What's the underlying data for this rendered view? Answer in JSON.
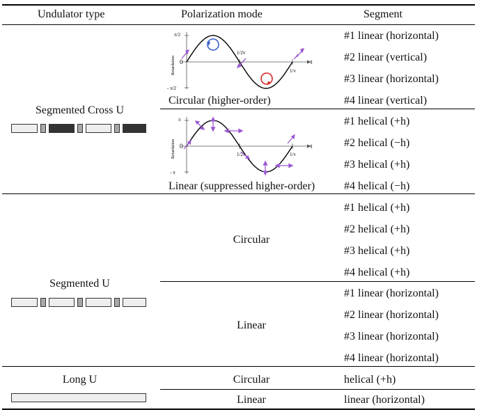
{
  "headers": {
    "undulator_type": "Undulator type",
    "polarization_mode": "Polarization mode",
    "segment": "Segment"
  },
  "rows": [
    {
      "undulator": "Segmented Cross U",
      "modes": [
        {
          "label": "Circular (higher-order)",
          "figure": {
            "y_axis_label": "Retardation",
            "y_top": "π/2",
            "y_bottom": "- π/2",
            "y_zero": "0",
            "x_half": "1/2v",
            "x_full": "1/v",
            "x_axis": "t",
            "icons": [
              "circle-left-handed-icon",
              "circle-right-handed-icon",
              "arrow-diagonal-icon"
            ]
          },
          "segments": [
            "#1 linear (horizontal)",
            "#2 linear (vertical)",
            "#3 linear (horizontal)",
            "#4 linear (vertical)"
          ]
        },
        {
          "label": "Linear (suppressed higher-order)",
          "figure": {
            "y_axis_label": "Retardation",
            "y_top": "π",
            "y_bottom": "- π",
            "y_zero": "0",
            "x_half": "1/2v",
            "x_full": "1/v",
            "x_axis": "t",
            "icons": [
              "arrow-diagonal-icon",
              "arrow-vertical-icon",
              "arrow-horizontal-icon"
            ]
          },
          "segments": [
            "#1 helical (+h)",
            "#2 helical (−h)",
            "#3 helical (+h)",
            "#4 helical (−h)"
          ]
        }
      ]
    },
    {
      "undulator": "Segmented U",
      "modes": [
        {
          "label": "Circular",
          "segments": [
            "#1 helical (+h)",
            "#2 helical (+h)",
            "#3 helical (+h)",
            "#4 helical (+h)"
          ]
        },
        {
          "label": "Linear",
          "segments": [
            "#1 linear (horizontal)",
            "#2 linear (horizontal)",
            "#3 linear (horizontal)",
            "#4 linear (horizontal)"
          ]
        }
      ]
    },
    {
      "undulator": "Long U",
      "modes": [
        {
          "label": "Circular",
          "segments": [
            "helical (+h)"
          ]
        },
        {
          "label": "Linear",
          "segments": [
            "linear (horizontal)"
          ]
        }
      ]
    }
  ],
  "colors": {
    "curve": "#000000",
    "arrow": "#9b59d0",
    "circle_left": "#3a5fcd",
    "circle_right": "#d62828",
    "magnet_light": "#eeeeee",
    "magnet_gray": "#a8a8a8",
    "magnet_dark": "#333333"
  }
}
